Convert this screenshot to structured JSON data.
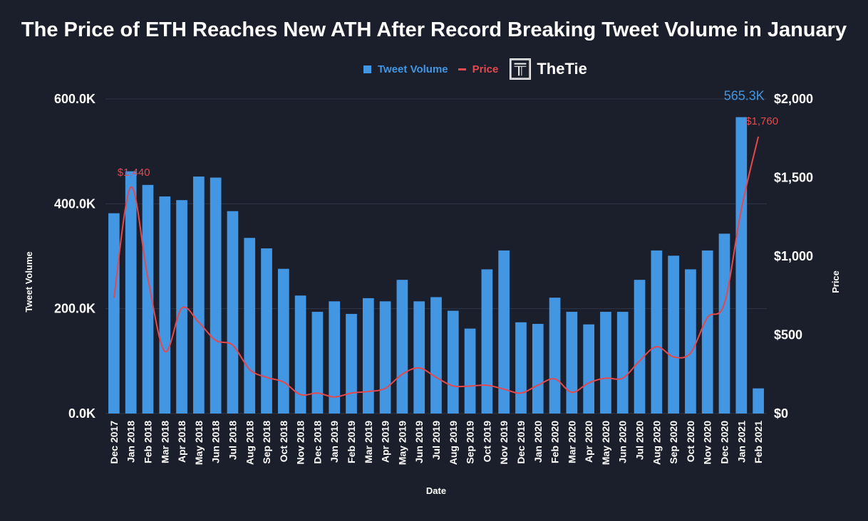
{
  "title": "The Price of ETH Reaches New ATH After Record Breaking Tweet Volume in January",
  "legend": {
    "volume": "Tweet Volume",
    "price": "Price"
  },
  "logo": {
    "prefix": "The",
    "suffix": "Tie"
  },
  "colors": {
    "bar": "#4296e2",
    "line": "#e5484d",
    "background": "#1b1f2b",
    "grid": "#2e3444",
    "axis_text": "#ffffff"
  },
  "chart_data": {
    "type": "bar",
    "title": "The Price of ETH Reaches New ATH After Record Breaking Tweet Volume in January",
    "xlabel": "Date",
    "ylabel": "Tweet Volume",
    "y2label": "Price",
    "ylim": [
      0,
      600000
    ],
    "y2lim": [
      0,
      2000
    ],
    "yticks": [
      "0.0K",
      "200.0K",
      "400.0K",
      "600.0K"
    ],
    "y2ticks": [
      "$0",
      "$500",
      "$1,000",
      "$1,500",
      "$2,000"
    ],
    "grid": true,
    "legend_position": "top-center",
    "categories": [
      "Dec 2017",
      "Jan 2018",
      "Feb 2018",
      "Mar 2018",
      "Apr 2018",
      "May 2018",
      "Jun 2018",
      "Jul 2018",
      "Aug 2018",
      "Sep 2018",
      "Oct 2018",
      "Nov 2018",
      "Dec 2018",
      "Jan 2019",
      "Feb 2019",
      "Mar 2019",
      "Apr 2019",
      "May 2019",
      "Jun 2019",
      "Jul 2019",
      "Aug 2019",
      "Sep 2019",
      "Oct 2019",
      "Nov 2019",
      "Dec 2019",
      "Jan 2020",
      "Feb 2020",
      "Mar 2020",
      "Apr 2020",
      "May 2020",
      "Jun 2020",
      "Jul 2020",
      "Aug 2020",
      "Sep 2020",
      "Oct 2020",
      "Nov 2020",
      "Dec 2020",
      "Jan 2021",
      "Feb 2021"
    ],
    "series": [
      {
        "name": "Tweet Volume",
        "type": "bar",
        "axis": "left",
        "values": [
          382000,
          462000,
          436000,
          414000,
          407000,
          452000,
          450000,
          386000,
          335000,
          315000,
          276000,
          225000,
          194000,
          214000,
          190000,
          220000,
          214000,
          255000,
          214000,
          222000,
          196000,
          162000,
          275000,
          311000,
          174000,
          171000,
          221000,
          194000,
          170000,
          194000,
          194000,
          255000,
          311000,
          301000,
          275000,
          311000,
          343000,
          565300,
          48000
        ]
      },
      {
        "name": "Price",
        "type": "line",
        "axis": "right",
        "values": [
          735,
          1440,
          860,
          395,
          670,
          580,
          465,
          435,
          280,
          230,
          200,
          120,
          130,
          105,
          130,
          140,
          160,
          250,
          290,
          230,
          175,
          175,
          180,
          155,
          130,
          180,
          220,
          135,
          195,
          225,
          225,
          335,
          425,
          360,
          385,
          610,
          700,
          1300,
          1760
        ]
      }
    ],
    "annotations": [
      {
        "label": "565.3K",
        "category": "Jan 2021",
        "series": "Tweet Volume"
      },
      {
        "label": "$1,760",
        "category": "Feb 2021",
        "series": "Price"
      },
      {
        "label": "$1,440",
        "category": "Jan 2018",
        "series": "Price"
      }
    ]
  }
}
